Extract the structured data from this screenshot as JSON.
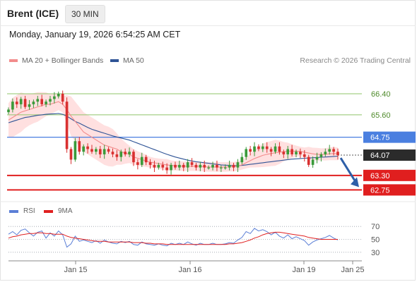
{
  "header": {
    "instrument": "Brent (ICE)",
    "timeframe": "30 MIN",
    "datetime": "Monday, January 19, 2026 6:54:25 AM CET"
  },
  "legend": {
    "ma20_label": "MA 20 + Bollinger Bands",
    "ma50_label": "MA 50",
    "ma20_color": "#f28c8c",
    "ma50_color": "#2f5496",
    "credit": "Research © 2026 Trading Central"
  },
  "rsi_legend": {
    "rsi_label": "RSI",
    "ma_label": "9MA",
    "rsi_color": "#5b7fd6",
    "ma_color": "#e02020"
  },
  "colors": {
    "up_candle": "#3a9a3a",
    "down_candle": "#d93030",
    "band_fill": "#ffd6d6",
    "resistance": "#8fc46a",
    "pivot": "#4a7fe0",
    "support": "#e01f1f",
    "current": "#2b2b2b",
    "forecast_arrow": "#2e5fa8"
  },
  "chart_data": [
    {
      "type": "candlestick",
      "name": "price",
      "title": "Brent (ICE)",
      "x_ticks": [
        "Jan 15",
        "Jan 16",
        "Jan 19",
        "Jan 25"
      ],
      "ylim": [
        62.6,
        66.8
      ],
      "levels": [
        {
          "label": "66.40",
          "value": 66.4,
          "kind": "resistance"
        },
        {
          "label": "65.60",
          "value": 65.6,
          "kind": "resistance"
        },
        {
          "label": "64.75",
          "value": 64.75,
          "kind": "pivot"
        },
        {
          "label": "63.30",
          "value": 63.3,
          "kind": "support"
        },
        {
          "label": "62.75",
          "value": 62.75,
          "kind": "support"
        }
      ],
      "current_price": {
        "label": "64.07",
        "value": 64.07
      },
      "forecast": {
        "from": 64.07,
        "to": 62.75
      },
      "close": [
        65.8,
        66.1,
        66.0,
        66.2,
        65.9,
        66.0,
        66.1,
        66.2,
        66.0,
        66.1,
        66.2,
        66.3,
        66.4,
        66.1,
        64.3,
        63.9,
        64.6,
        64.2,
        64.4,
        64.3,
        64.2,
        64.3,
        64.1,
        64.3,
        64.2,
        64.1,
        64.0,
        64.2,
        64.1,
        64.2,
        63.8,
        63.7,
        64.0,
        63.8,
        63.7,
        63.6,
        63.7,
        63.6,
        63.5,
        63.7,
        63.6,
        63.7,
        63.6,
        63.8,
        63.7,
        63.6,
        63.7,
        63.6,
        63.6,
        63.7,
        63.6,
        63.6,
        63.6,
        63.7,
        63.6,
        63.8,
        64.0,
        64.3,
        64.2,
        64.4,
        64.3,
        64.4,
        64.3,
        64.2,
        64.4,
        64.2,
        64.1,
        64.3,
        64.1,
        64.2,
        64.1,
        64.0,
        63.7,
        63.9,
        64.0,
        64.1,
        64.2,
        64.3,
        64.2,
        64.07
      ],
      "ma20": [
        65.4,
        65.5,
        65.6,
        65.7,
        65.75,
        65.8,
        65.85,
        65.9,
        65.95,
        66.0,
        66.0,
        66.05,
        66.1,
        66.0,
        65.8,
        65.55,
        65.35,
        65.15,
        64.95,
        64.85,
        64.75,
        64.65,
        64.55,
        64.45,
        64.4,
        64.35,
        64.3,
        64.2,
        64.15,
        64.1,
        64.0,
        63.95,
        63.9,
        63.85,
        63.8,
        63.78,
        63.75,
        63.72,
        63.7,
        63.68,
        63.67,
        63.66,
        63.65,
        63.65,
        63.65,
        63.65,
        63.64,
        63.63,
        63.62,
        63.62,
        63.62,
        63.62,
        63.62,
        63.63,
        63.63,
        63.66,
        63.7,
        63.78,
        63.86,
        63.94,
        64.0,
        64.06,
        64.1,
        64.13,
        64.16,
        64.18,
        64.2,
        64.22,
        64.22,
        64.22,
        64.21,
        64.18,
        64.15,
        64.12,
        64.1,
        64.1,
        64.1,
        64.12,
        64.13,
        64.12
      ],
      "ma50": [
        65.3,
        65.35,
        65.4,
        65.45,
        65.5,
        65.52,
        65.55,
        65.58,
        65.6,
        65.62,
        65.63,
        65.64,
        65.65,
        65.62,
        65.55,
        65.45,
        65.35,
        65.28,
        65.2,
        65.12,
        65.05,
        65.0,
        64.95,
        64.9,
        64.85,
        64.8,
        64.76,
        64.72,
        64.68,
        64.64,
        64.58,
        64.52,
        64.46,
        64.4,
        64.34,
        64.28,
        64.22,
        64.16,
        64.1,
        64.05,
        64.0,
        63.96,
        63.92,
        63.88,
        63.85,
        63.82,
        63.8,
        63.78,
        63.76,
        63.74,
        63.72,
        63.7,
        63.69,
        63.68,
        63.67,
        63.67,
        63.68,
        63.7,
        63.72,
        63.74,
        63.76,
        63.78,
        63.8,
        63.82,
        63.84,
        63.86,
        63.88,
        63.9,
        63.92,
        63.93,
        63.94,
        63.95,
        63.96,
        63.97,
        63.98,
        63.99,
        64.0,
        64.01,
        64.02,
        64.03
      ]
    },
    {
      "type": "line",
      "name": "RSI",
      "ylim": [
        20,
        80
      ],
      "y_ticks": [
        30,
        50,
        70
      ],
      "series": [
        {
          "name": "RSI",
          "values": [
            58,
            62,
            57,
            64,
            66,
            60,
            55,
            61,
            63,
            52,
            60,
            55,
            63,
            57,
            38,
            43,
            55,
            47,
            49,
            47,
            45,
            48,
            44,
            49,
            46,
            44,
            43,
            47,
            45,
            47,
            42,
            41,
            46,
            43,
            42,
            41,
            43,
            41,
            40,
            44,
            42,
            44,
            42,
            46,
            43,
            41,
            44,
            42,
            42,
            44,
            42,
            42,
            43,
            45,
            44,
            49,
            53,
            62,
            59,
            67,
            63,
            65,
            62,
            57,
            61,
            55,
            52,
            57,
            51,
            54,
            51,
            48,
            41,
            46,
            49,
            51,
            53,
            56,
            52,
            49
          ]
        },
        {
          "name": "9MA",
          "values": [
            52,
            54,
            55,
            57,
            58,
            59,
            59,
            60,
            60,
            59,
            59,
            58,
            58,
            58,
            55,
            53,
            52,
            51,
            50,
            49,
            48,
            47,
            47,
            47,
            46,
            46,
            46,
            46,
            46,
            46,
            45,
            45,
            45,
            44,
            44,
            43,
            43,
            43,
            42,
            42,
            42,
            42,
            42,
            42,
            42,
            42,
            42,
            42,
            42,
            42,
            42,
            42,
            42,
            43,
            43,
            44,
            45,
            47,
            49,
            52,
            54,
            57,
            59,
            60,
            61,
            61,
            60,
            59,
            58,
            57,
            56,
            55,
            53,
            52,
            51,
            50,
            50,
            50,
            50,
            50
          ]
        }
      ]
    }
  ]
}
